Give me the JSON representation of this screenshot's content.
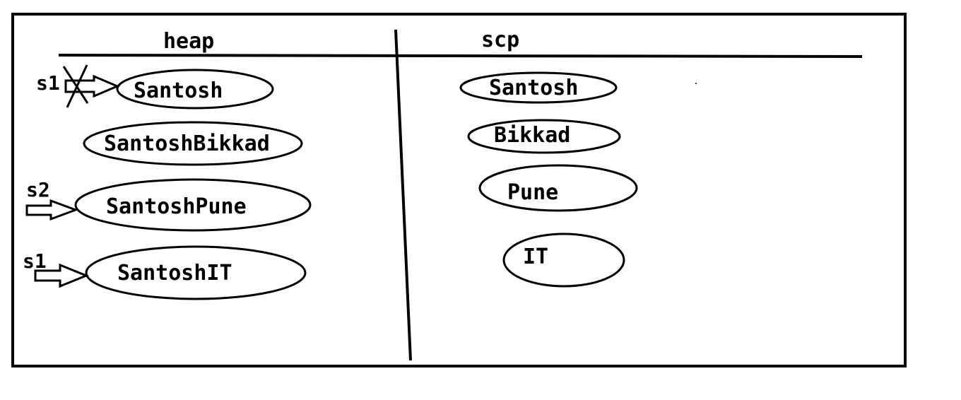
{
  "sections": {
    "heap": "heap",
    "scp": "scp"
  },
  "heap": {
    "objects": [
      "Santosh",
      "SantoshBikkad",
      "SantoshPune",
      "SantoshIT"
    ],
    "references": [
      "s1",
      "s2",
      "s1"
    ]
  },
  "scp": {
    "objects": [
      "Santosh",
      "Bikkad",
      "Pune",
      "IT"
    ]
  },
  "colors": {
    "ink": "#000000",
    "background": "#ffffff"
  },
  "icons": {
    "reference_arrow": "reference-arrow-icon",
    "crossed_out": "cross-icon"
  }
}
